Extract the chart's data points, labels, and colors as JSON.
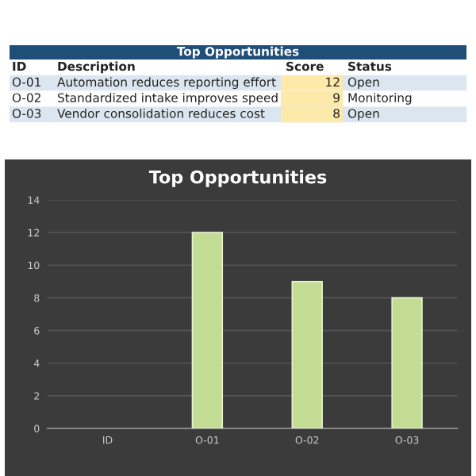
{
  "chart_data": {
    "type": "bar",
    "title": "Top Opportunities",
    "categories": [
      "ID",
      "O-01",
      "O-02",
      "O-03"
    ],
    "values": [
      null,
      12,
      9,
      8
    ],
    "color": "#c3dc93",
    "ylim": [
      0,
      14
    ],
    "yticks": [
      0,
      2,
      4,
      6,
      8,
      10,
      12,
      14
    ],
    "grid": "y",
    "annotations": [
      "Top Opportunities",
      "ID",
      "Description",
      "Score",
      "Status",
      "O-01",
      "Automation reduces reporting effort",
      "12",
      "Open",
      "O-02",
      "Standardized intake improves speed",
      "9",
      "Monitoring",
      "O-03",
      "Vendor consolidation reduces cost",
      "8",
      "Open"
    ]
  }
}
